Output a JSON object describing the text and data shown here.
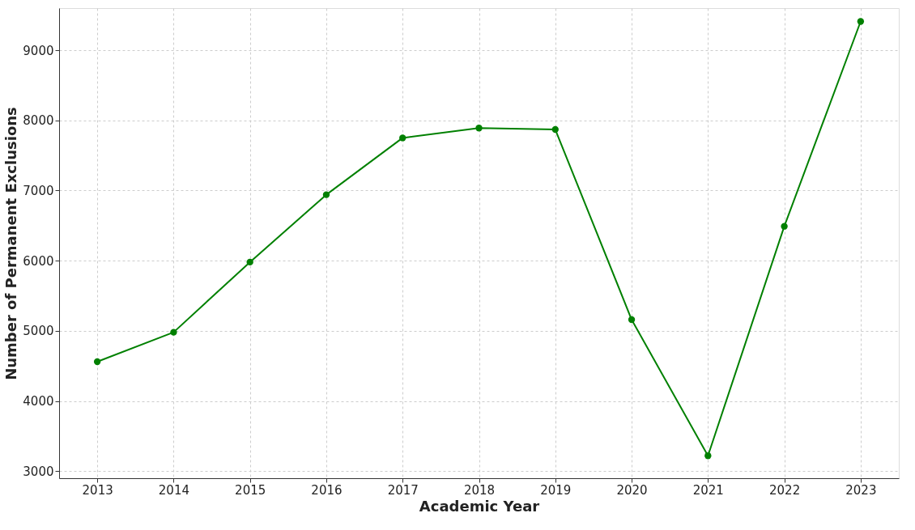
{
  "chart_data": {
    "type": "line",
    "xlabel": "Academic Year",
    "ylabel": "Number of Permanent Exclusions",
    "x": [
      2013,
      2014,
      2015,
      2016,
      2017,
      2018,
      2019,
      2020,
      2021,
      2022,
      2023
    ],
    "series": [
      {
        "color": "#008000",
        "values": [
          4560,
          4980,
          5980,
          6940,
          7750,
          7890,
          7870,
          5160,
          3220,
          6490,
          9410
        ]
      }
    ],
    "xlim": [
      2012.5,
      2023.5
    ],
    "xticks": [
      2013,
      2014,
      2015,
      2016,
      2017,
      2018,
      2019,
      2020,
      2021,
      2022,
      2023
    ],
    "ylim": [
      2900,
      9600
    ],
    "yticks": [
      3000,
      4000,
      5000,
      6000,
      7000,
      8000,
      9000
    ],
    "grid": true,
    "marker": "circle",
    "line_style": "solid"
  }
}
